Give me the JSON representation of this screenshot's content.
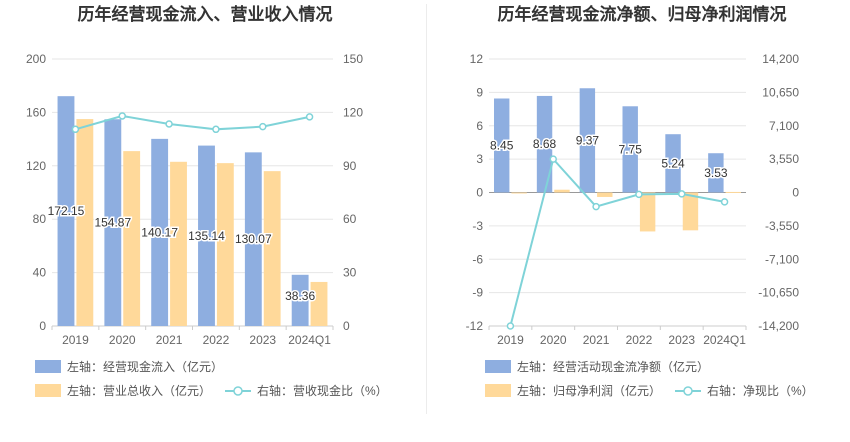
{
  "chart_data": [
    {
      "type": "bar",
      "title": "历年经营现金流入、营业收入情况",
      "categories": [
        "2019",
        "2020",
        "2021",
        "2022",
        "2023",
        "2024Q1"
      ],
      "y_left": {
        "ticks": [
          "0",
          "40",
          "80",
          "120",
          "160",
          "200"
        ],
        "ylim": [
          0,
          200
        ]
      },
      "y_right": {
        "ticks": [
          "0",
          "30",
          "60",
          "90",
          "120",
          "150"
        ],
        "ylim": [
          0,
          150
        ]
      },
      "series": [
        {
          "name": "左轴：经营现金流入（亿元）",
          "axis": "left",
          "kind": "bar",
          "color": "#8eaee0",
          "values": [
            172.15,
            154.87,
            140.17,
            135.14,
            130.07,
            38.36
          ],
          "labels": [
            "172.15",
            "154.87",
            "140.17",
            "135.14",
            "130.07",
            "38.36"
          ]
        },
        {
          "name": "左轴：营业总收入（亿元）",
          "axis": "left",
          "kind": "bar",
          "color": "#ffd99a",
          "values": [
            155,
            131,
            123,
            122,
            116,
            33
          ]
        },
        {
          "name": "右轴：营收现金比（%）",
          "axis": "right",
          "kind": "line",
          "color": "#7fd3d8",
          "values": [
            110.5,
            118,
            113.5,
            110.5,
            112,
            117.5
          ]
        }
      ]
    },
    {
      "type": "bar",
      "title": "历年经营现金流净额、归母净利润情况",
      "categories": [
        "2019",
        "2020",
        "2021",
        "2022",
        "2023",
        "2024Q1"
      ],
      "y_left": {
        "ticks": [
          "-12",
          "-9",
          "-6",
          "-3",
          "0",
          "3",
          "6",
          "9",
          "12"
        ],
        "ylim": [
          -12,
          12
        ]
      },
      "y_right": {
        "ticks": [
          "-14,200",
          "-10,650",
          "-7,100",
          "-3,550",
          "0",
          "3,550",
          "7,100",
          "10,650",
          "14,200"
        ],
        "ylim": [
          -14200,
          14200
        ]
      },
      "series": [
        {
          "name": "左轴：经营活动现金流净额（亿元）",
          "axis": "left",
          "kind": "bar",
          "color": "#8eaee0",
          "values": [
            8.45,
            8.68,
            9.37,
            7.75,
            5.24,
            3.53
          ],
          "labels": [
            "8.45",
            "8.68",
            "9.37",
            "7.75",
            "5.24",
            "3.53"
          ]
        },
        {
          "name": "左轴：归母净利润（亿元）",
          "axis": "left",
          "kind": "bar",
          "color": "#ffd99a",
          "values": [
            -0.05,
            0.25,
            -0.4,
            -3.5,
            -3.4,
            0.05
          ]
        },
        {
          "name": "右轴：净现比（%）",
          "axis": "right",
          "kind": "line",
          "color": "#7fd3d8",
          "values": [
            -14200,
            3550,
            -1500,
            -200,
            -150,
            -1000
          ]
        }
      ]
    }
  ]
}
